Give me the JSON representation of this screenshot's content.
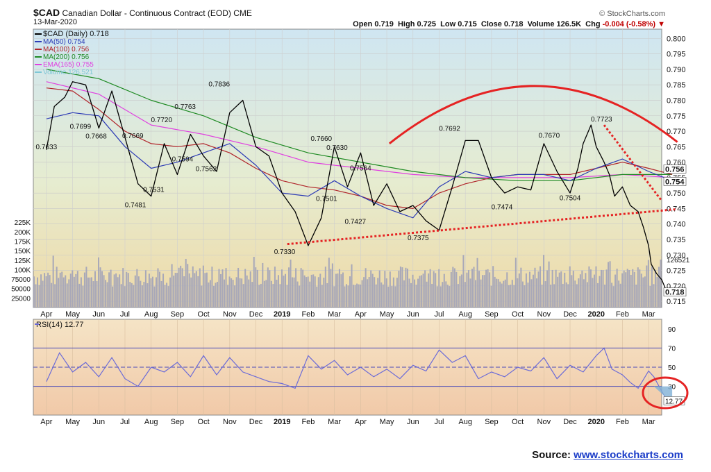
{
  "header": {
    "symbol": "$CAD",
    "name": "Canadian Dollar - Continuous Contract (EOD)",
    "exchange": "CME",
    "date": "13-Mar-2020",
    "brand": "© StockCharts.com",
    "open_label": "Open",
    "open": "0.719",
    "high_label": "High",
    "high": "0.725",
    "low_label": "Low",
    "low": "0.715",
    "close_label": "Close",
    "close": "0.718",
    "volume_label": "Volume",
    "volume": "126.5K",
    "chg_label": "Chg",
    "chg": "-0.004 (-0.58%)"
  },
  "colors": {
    "price": "#000000",
    "ma50": "#2d3bb5",
    "ma100": "#b0242a",
    "ma200": "#1e8a22",
    "ema165": "#e040e0",
    "volume": "#a8a8b8",
    "rsi": "#6b6bd8",
    "annotation": "#e52323",
    "bg_top": "#cfe6f2",
    "bg_bottom": "#efd9a6",
    "rsi_bg": "#f3d8b7"
  },
  "chart_data": [
    {
      "type": "line",
      "title": "$CAD (Daily) 0.718",
      "legend_position": "top-left",
      "legend": [
        {
          "label": "$CAD (Daily) 0.718",
          "color": "#000000"
        },
        {
          "label": "MA(50) 0.754",
          "color": "#2d3bb5"
        },
        {
          "label": "MA(100) 0.756",
          "color": "#b0242a"
        },
        {
          "label": "MA(200) 0.756",
          "color": "#1e8a22"
        },
        {
          "label": "EMA(165) 0.755",
          "color": "#e040e0"
        },
        {
          "label": "Volume 126,521",
          "color": "#7fc7d6"
        }
      ],
      "x_ticks": [
        "Apr",
        "May",
        "Jun",
        "Jul",
        "Aug",
        "Sep",
        "Oct",
        "Nov",
        "Dec",
        "2019",
        "Feb",
        "Mar",
        "Apr",
        "May",
        "Jun",
        "Jul",
        "Aug",
        "Sep",
        "Oct",
        "Nov",
        "Dec",
        "2020",
        "Feb",
        "Mar"
      ],
      "y_ticks": [
        "0.800",
        "0.795",
        "0.790",
        "0.785",
        "0.780",
        "0.775",
        "0.770",
        "0.765",
        "0.760",
        "0.755",
        "0.750",
        "0.745",
        "0.740",
        "0.735",
        "0.730",
        "0.725",
        "0.720",
        "0.715"
      ],
      "ylim": [
        0.713,
        0.803
      ],
      "grid": true,
      "series": [
        {
          "name": "$CAD (Daily)",
          "x": [
            0,
            0.3,
            0.7,
            1,
            1.5,
            2,
            2.5,
            3,
            3.5,
            4,
            4.5,
            5,
            5.5,
            6,
            6.5,
            7,
            7.5,
            8,
            8.5,
            9,
            9.5,
            10,
            10.5,
            11,
            11.5,
            12,
            12.5,
            13,
            13.5,
            14,
            14.5,
            15,
            15.5,
            16,
            16.5,
            17,
            17.5,
            18,
            18.5,
            19,
            19.5,
            20,
            20.3,
            20.5,
            20.8,
            21,
            21.3,
            21.5,
            21.7,
            22,
            22.3,
            22.6,
            22.8,
            23,
            23.1,
            23.3,
            23.5,
            23.7,
            23.9
          ],
          "values": [
            0.764,
            0.778,
            0.781,
            0.786,
            0.785,
            0.771,
            0.783,
            0.768,
            0.753,
            0.749,
            0.766,
            0.756,
            0.769,
            0.762,
            0.757,
            0.776,
            0.78,
            0.765,
            0.762,
            0.75,
            0.744,
            0.733,
            0.742,
            0.765,
            0.752,
            0.763,
            0.746,
            0.753,
            0.744,
            0.746,
            0.741,
            0.738,
            0.752,
            0.767,
            0.767,
            0.755,
            0.75,
            0.752,
            0.751,
            0.766,
            0.757,
            0.75,
            0.758,
            0.766,
            0.772,
            0.765,
            0.76,
            0.756,
            0.749,
            0.752,
            0.746,
            0.744,
            0.739,
            0.733,
            0.727,
            0.724,
            0.722,
            0.718,
            0.718
          ]
        },
        {
          "name": "MA(50)",
          "x": [
            0,
            1,
            2,
            3,
            4,
            5,
            6,
            7,
            8,
            9,
            10,
            11,
            12,
            13,
            14,
            15,
            16,
            17,
            18,
            19,
            20,
            21,
            22,
            23,
            23.9
          ],
          "values": [
            0.774,
            0.776,
            0.775,
            0.765,
            0.758,
            0.76,
            0.763,
            0.766,
            0.759,
            0.75,
            0.749,
            0.754,
            0.749,
            0.745,
            0.742,
            0.752,
            0.757,
            0.755,
            0.756,
            0.756,
            0.754,
            0.758,
            0.761,
            0.757,
            0.754
          ]
        },
        {
          "name": "MA(100)",
          "x": [
            0,
            1,
            2,
            3,
            4,
            5,
            6,
            7,
            8,
            9,
            10,
            11,
            12,
            13,
            14,
            15,
            16,
            17,
            18,
            19,
            20,
            21,
            22,
            23,
            23.9
          ],
          "values": [
            0.784,
            0.783,
            0.777,
            0.77,
            0.766,
            0.765,
            0.766,
            0.763,
            0.758,
            0.754,
            0.752,
            0.751,
            0.749,
            0.746,
            0.745,
            0.75,
            0.753,
            0.755,
            0.756,
            0.756,
            0.756,
            0.758,
            0.76,
            0.758,
            0.756
          ]
        },
        {
          "name": "MA(200)",
          "x": [
            0,
            2,
            4,
            6,
            8,
            10,
            12,
            14,
            16,
            18,
            20,
            22,
            23.9
          ],
          "values": [
            0.79,
            0.787,
            0.78,
            0.775,
            0.768,
            0.763,
            0.76,
            0.757,
            0.755,
            0.754,
            0.754,
            0.756,
            0.756
          ]
        },
        {
          "name": "EMA(165)",
          "x": [
            0,
            2,
            4,
            6,
            8,
            10,
            12,
            14,
            16,
            18,
            20,
            22,
            23.9
          ],
          "values": [
            0.786,
            0.782,
            0.772,
            0.769,
            0.765,
            0.76,
            0.758,
            0.756,
            0.755,
            0.755,
            0.755,
            0.756,
            0.755
          ]
        }
      ],
      "annotations": [
        {
          "label": "0.7633",
          "x": 0,
          "y": 0.7633
        },
        {
          "label": "0.7699",
          "x": 1.3,
          "y": 0.7699
        },
        {
          "label": "0.7668",
          "x": 1.9,
          "y": 0.7668
        },
        {
          "label": "0.7669",
          "x": 3.3,
          "y": 0.7669
        },
        {
          "label": "0.7481",
          "x": 3.4,
          "y": 0.7481
        },
        {
          "label": "0.7531",
          "x": 4.1,
          "y": 0.7531
        },
        {
          "label": "0.7720",
          "x": 4.4,
          "y": 0.772
        },
        {
          "label": "0.7594",
          "x": 5.2,
          "y": 0.7594
        },
        {
          "label": "0.7763",
          "x": 5.3,
          "y": 0.7763
        },
        {
          "label": "0.7562",
          "x": 6.1,
          "y": 0.7562
        },
        {
          "label": "0.7836",
          "x": 6.6,
          "y": 0.7836
        },
        {
          "label": "0.7330",
          "x": 9.1,
          "y": 0.733
        },
        {
          "label": "0.7660",
          "x": 10.5,
          "y": 0.766
        },
        {
          "label": "0.7630",
          "x": 11.1,
          "y": 0.763
        },
        {
          "label": "0.7501",
          "x": 10.7,
          "y": 0.7501
        },
        {
          "label": "0.7564",
          "x": 12.0,
          "y": 0.7564
        },
        {
          "label": "0.7427",
          "x": 11.8,
          "y": 0.7427
        },
        {
          "label": "0.7375",
          "x": 14.2,
          "y": 0.7375
        },
        {
          "label": "0.7692",
          "x": 15.4,
          "y": 0.7692
        },
        {
          "label": "0.7474",
          "x": 17.4,
          "y": 0.7474
        },
        {
          "label": "0.7670",
          "x": 19.2,
          "y": 0.767
        },
        {
          "label": "0.7504",
          "x": 20.0,
          "y": 0.7504
        },
        {
          "label": "0.7723",
          "x": 21.2,
          "y": 0.7723
        }
      ],
      "right_labels": [
        {
          "label": "0.756",
          "y": 0.756
        },
        {
          "label": "0.754",
          "y": 0.754
        },
        {
          "label": "0.718",
          "y": 0.718
        }
      ]
    },
    {
      "type": "bar",
      "title": "Volume 126,521",
      "y_ticks": [
        "225K",
        "200K",
        "175K",
        "150K",
        "125K",
        "100K",
        "75000",
        "50000",
        "25000"
      ],
      "ylim": [
        0,
        240000
      ],
      "last_value": 126521,
      "last_label": "126521",
      "volume_seed": 7
    },
    {
      "type": "line",
      "title": "RSI(14) 12.77",
      "ylim": [
        0,
        100
      ],
      "y_ticks": [
        "90",
        "70",
        "50",
        "30"
      ],
      "reference_lines": [
        70,
        50,
        30
      ],
      "last_label": "12.77",
      "series": [
        {
          "name": "RSI(14)",
          "x": [
            0,
            0.5,
            1,
            1.5,
            2,
            2.5,
            3,
            3.5,
            4,
            4.5,
            5,
            5.5,
            6,
            6.5,
            7,
            7.5,
            8,
            8.5,
            9,
            9.5,
            10,
            10.5,
            11,
            11.5,
            12,
            12.5,
            13,
            13.5,
            14,
            14.5,
            15,
            15.5,
            16,
            16.5,
            17,
            17.5,
            18,
            18.5,
            19,
            19.5,
            20,
            20.5,
            21,
            21.3,
            21.6,
            22,
            22.3,
            22.6,
            23,
            23.2,
            23.4,
            23.6,
            23.9
          ],
          "values": [
            35,
            65,
            45,
            55,
            40,
            60,
            38,
            30,
            50,
            45,
            55,
            40,
            62,
            42,
            60,
            45,
            40,
            35,
            33,
            28,
            62,
            48,
            57,
            42,
            50,
            40,
            48,
            38,
            52,
            46,
            68,
            55,
            62,
            38,
            45,
            40,
            50,
            46,
            60,
            38,
            52,
            45,
            62,
            70,
            48,
            42,
            34,
            28,
            46,
            40,
            30,
            20,
            12.77
          ]
        }
      ]
    }
  ],
  "source": {
    "label": "Source:",
    "link_text": "www.stockcharts.com"
  }
}
